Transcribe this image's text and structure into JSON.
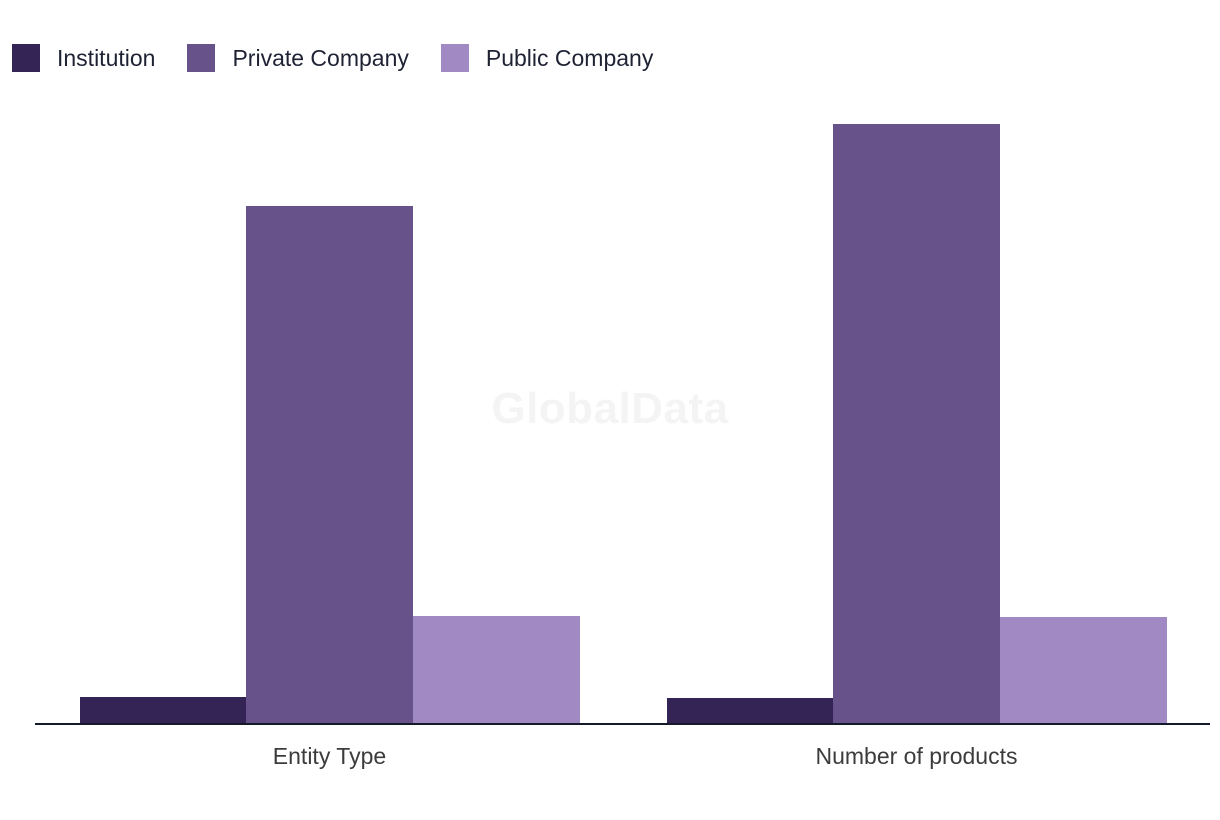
{
  "watermark": {
    "text": "GlobalData"
  },
  "legend": {
    "position": "top-left",
    "items": [
      {
        "label": "Institution",
        "color": "#342355"
      },
      {
        "label": "Private Company",
        "color": "#675289"
      },
      {
        "label": "Public Company",
        "color": "#a18ac4"
      }
    ]
  },
  "chart_data": {
    "type": "bar",
    "title": "",
    "xlabel": "",
    "ylabel": "",
    "categories": [
      "Entity Type",
      "Number of products"
    ],
    "series": [
      {
        "name": "Institution",
        "color": "#342355",
        "values": [
          4.3,
          4.2
        ]
      },
      {
        "name": "Private Company",
        "color": "#675289",
        "values": [
          86.3,
          100
        ]
      },
      {
        "name": "Public Company",
        "color": "#a18ac4",
        "values": [
          17.9,
          17.7
        ]
      }
    ],
    "ylim": [
      0,
      100
    ],
    "value_axis_visible": false,
    "grid": false,
    "legend_position": "top-left",
    "note": "no value axis shown; values are bar heights as % of tallest bar"
  },
  "axis": {
    "line_color": "#151a2b"
  }
}
